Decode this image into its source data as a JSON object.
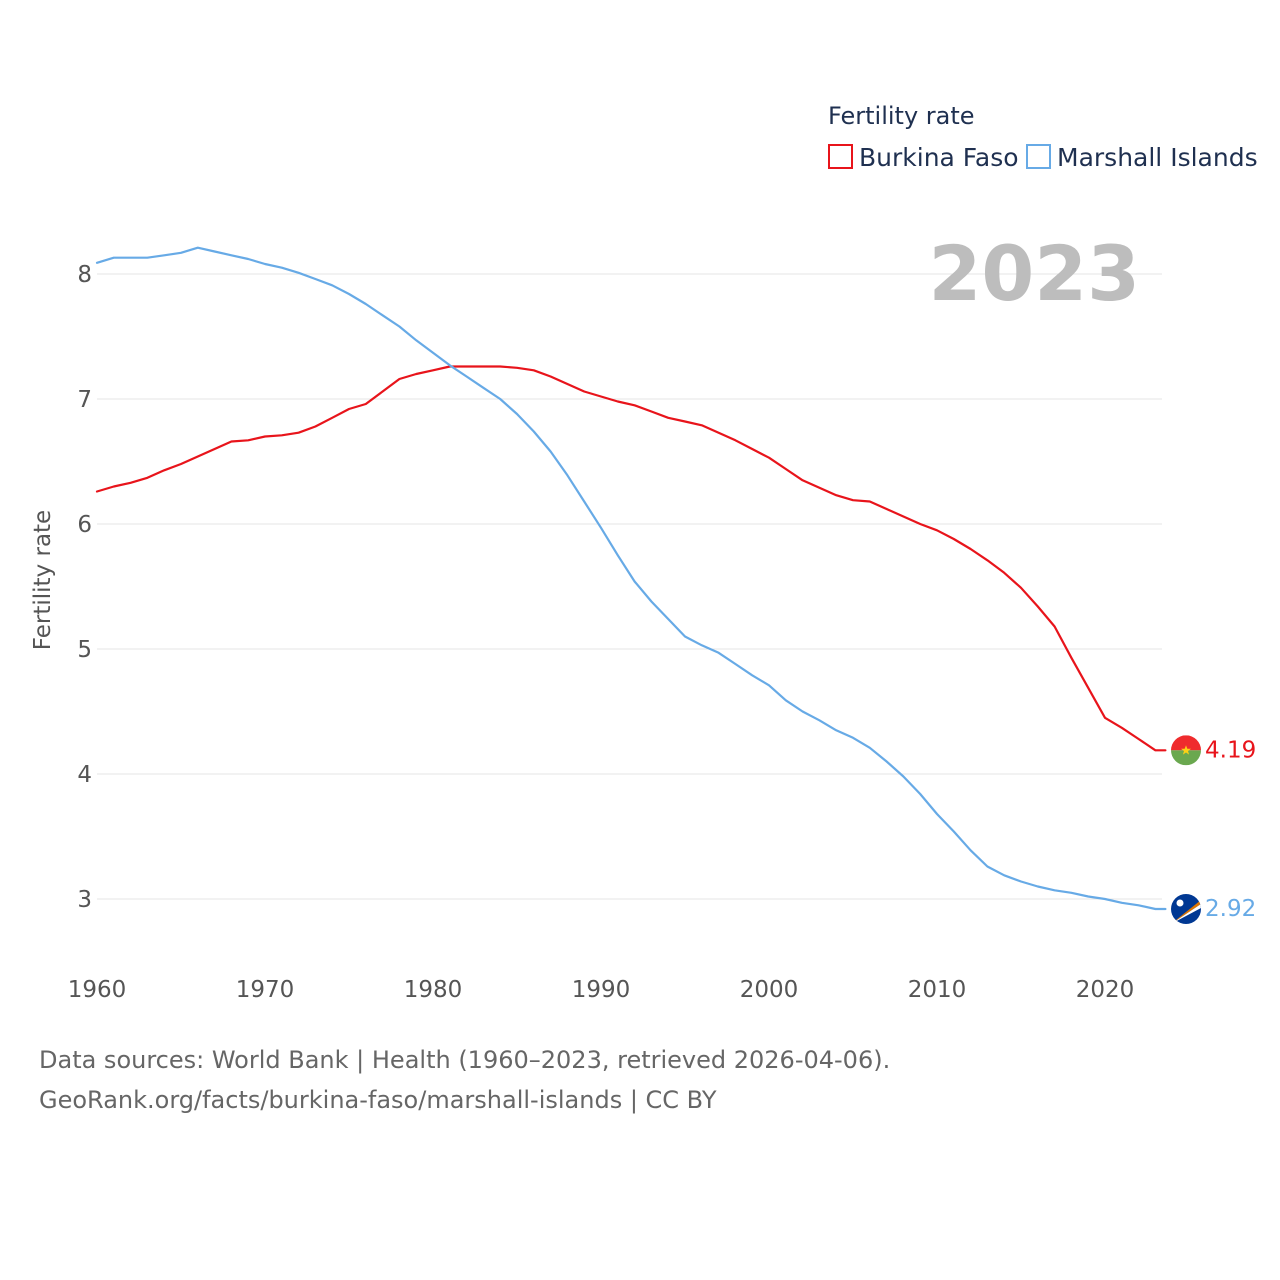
{
  "legend": {
    "title": "Fertility rate",
    "items": [
      {
        "label": "Burkina Faso",
        "color": "#e8141b"
      },
      {
        "label": "Marshall Islands",
        "color": "#67aae6"
      }
    ]
  },
  "year_label": "2023",
  "footer": {
    "line1": "Data sources: World Bank | Health (1960–2023, retrieved 2026-04-06).",
    "line2": "GeoRank.org/facts/burkina-faso/marshall-islands | CC BY"
  },
  "chart_data": {
    "type": "line",
    "title": "Fertility rate",
    "xlabel": "",
    "ylabel": "Fertility rate",
    "xlim": [
      1960,
      2023
    ],
    "ylim": [
      2.6,
      8.3
    ],
    "x_ticks": [
      1960,
      1970,
      1980,
      1990,
      2000,
      2010,
      2020
    ],
    "y_ticks": [
      3,
      4,
      5,
      6,
      7,
      8
    ],
    "grid": true,
    "legend_position": "top-right",
    "series": [
      {
        "name": "Burkina Faso",
        "color": "#e8141b",
        "end_label": "4.19",
        "x": [
          1960,
          1961,
          1962,
          1963,
          1964,
          1965,
          1966,
          1967,
          1968,
          1969,
          1970,
          1971,
          1972,
          1973,
          1974,
          1975,
          1976,
          1977,
          1978,
          1979,
          1980,
          1981,
          1982,
          1983,
          1984,
          1985,
          1986,
          1987,
          1988,
          1989,
          1990,
          1991,
          1992,
          1993,
          1994,
          1995,
          1996,
          1997,
          1998,
          1999,
          2000,
          2001,
          2002,
          2003,
          2004,
          2005,
          2006,
          2007,
          2008,
          2009,
          2010,
          2011,
          2012,
          2013,
          2014,
          2015,
          2016,
          2017,
          2018,
          2019,
          2020,
          2021,
          2022,
          2023
        ],
        "values": [
          6.26,
          6.3,
          6.33,
          6.37,
          6.43,
          6.48,
          6.54,
          6.6,
          6.66,
          6.67,
          6.7,
          6.71,
          6.73,
          6.78,
          6.85,
          6.92,
          6.96,
          7.06,
          7.16,
          7.2,
          7.23,
          7.26,
          7.26,
          7.26,
          7.26,
          7.25,
          7.23,
          7.18,
          7.12,
          7.06,
          7.02,
          6.98,
          6.95,
          6.9,
          6.85,
          6.82,
          6.79,
          6.73,
          6.67,
          6.6,
          6.53,
          6.44,
          6.35,
          6.29,
          6.23,
          6.19,
          6.18,
          6.12,
          6.06,
          6.0,
          5.95,
          5.88,
          5.8,
          5.71,
          5.61,
          5.49,
          5.34,
          5.18,
          4.93,
          4.69,
          4.45,
          4.37,
          4.28,
          4.19
        ]
      },
      {
        "name": "Marshall Islands",
        "color": "#67aae6",
        "end_label": "2.92",
        "x": [
          1960,
          1961,
          1962,
          1963,
          1964,
          1965,
          1966,
          1967,
          1968,
          1969,
          1970,
          1971,
          1972,
          1973,
          1974,
          1975,
          1976,
          1977,
          1978,
          1979,
          1980,
          1981,
          1982,
          1983,
          1984,
          1985,
          1986,
          1987,
          1988,
          1989,
          1990,
          1991,
          1992,
          1993,
          1994,
          1995,
          1996,
          1997,
          1998,
          1999,
          2000,
          2001,
          2002,
          2003,
          2004,
          2005,
          2006,
          2007,
          2008,
          2009,
          2010,
          2011,
          2012,
          2013,
          2014,
          2015,
          2016,
          2017,
          2018,
          2019,
          2020,
          2021,
          2022,
          2023
        ],
        "values": [
          8.09,
          8.13,
          8.13,
          8.13,
          8.15,
          8.17,
          8.21,
          8.18,
          8.15,
          8.12,
          8.08,
          8.05,
          8.01,
          7.96,
          7.91,
          7.84,
          7.76,
          7.67,
          7.58,
          7.47,
          7.37,
          7.27,
          7.18,
          7.09,
          7.0,
          6.88,
          6.74,
          6.58,
          6.39,
          6.18,
          5.97,
          5.75,
          5.54,
          5.38,
          5.24,
          5.1,
          5.03,
          4.97,
          4.88,
          4.79,
          4.71,
          4.59,
          4.5,
          4.43,
          4.35,
          4.29,
          4.21,
          4.1,
          3.98,
          3.84,
          3.68,
          3.54,
          3.39,
          3.26,
          3.19,
          3.14,
          3.1,
          3.07,
          3.05,
          3.02,
          3.0,
          2.97,
          2.95,
          2.92
        ]
      }
    ]
  }
}
